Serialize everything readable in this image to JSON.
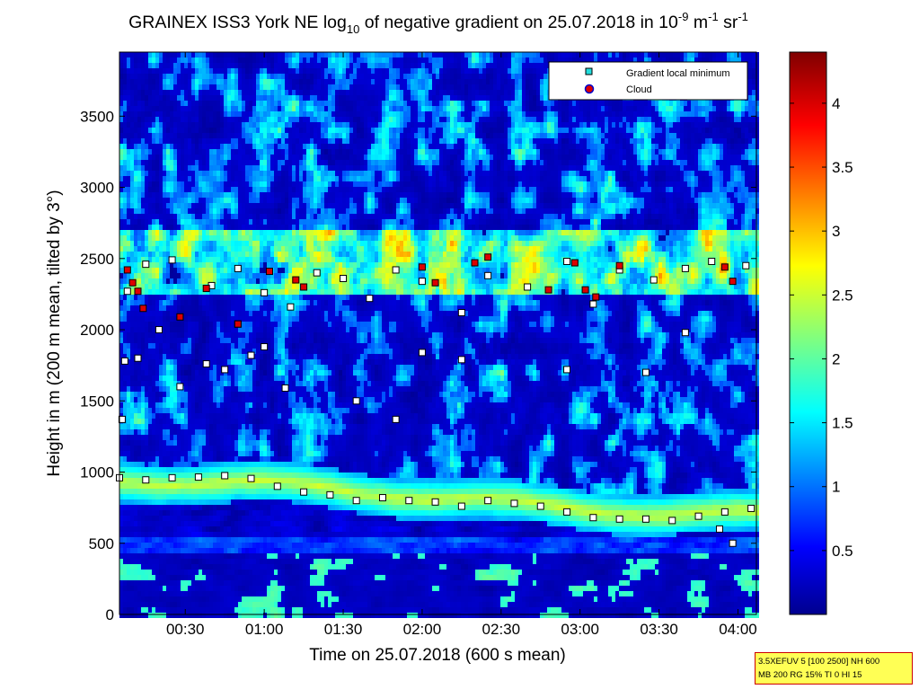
{
  "chart_data": {
    "type": "heatmap",
    "title_parts": {
      "pre": "GRAINEX ISS3 York NE log",
      "sub": "10",
      "mid": " of negative gradient on 25.07.2018 in 10",
      "sup1": "-9",
      "mid2": " m",
      "sup2": "-1",
      "mid3": " sr",
      "sup3": "-1"
    },
    "xlabel": "Time on 25.07.2018 (600 s mean)",
    "ylabel": "Height in m (200 m mean, tilted by 3°)",
    "x_ticks": [
      "00:30",
      "01:00",
      "01:30",
      "02:00",
      "02:30",
      "03:00",
      "03:30",
      "04:00"
    ],
    "x_tick_minutes": [
      30,
      60,
      90,
      120,
      150,
      180,
      210,
      240
    ],
    "xlim_minutes": [
      5,
      247
    ],
    "y_ticks": [
      "0",
      "500",
      "1000",
      "1500",
      "2000",
      "2500",
      "3000",
      "3500"
    ],
    "y_tick_values": [
      0,
      500,
      1000,
      1500,
      2000,
      2500,
      3000,
      3500
    ],
    "ylim": [
      0,
      3950
    ],
    "colorbar": {
      "range": [
        0,
        4.4
      ],
      "ticks": [
        "0.5",
        "1",
        "1.5",
        "2",
        "2.5",
        "3",
        "3.5",
        "4"
      ],
      "tick_values": [
        0.5,
        1,
        1.5,
        2,
        2.5,
        3,
        3.5,
        4
      ]
    },
    "legend": {
      "placement": "top-right",
      "entries": [
        {
          "label": "Gradient local minimum",
          "marker": "cyan-square",
          "color": "#22dddd"
        },
        {
          "label": "Cloud",
          "marker": "red-circle",
          "color": "#dd0000"
        }
      ]
    },
    "series": [
      {
        "name": "Gradient local minimum",
        "points": [
          [
            5,
            960
          ],
          [
            15,
            945
          ],
          [
            25,
            960
          ],
          [
            35,
            965
          ],
          [
            45,
            975
          ],
          [
            55,
            955
          ],
          [
            65,
            900
          ],
          [
            75,
            860
          ],
          [
            85,
            840
          ],
          [
            95,
            800
          ],
          [
            105,
            820
          ],
          [
            115,
            800
          ],
          [
            125,
            790
          ],
          [
            135,
            760
          ],
          [
            145,
            800
          ],
          [
            155,
            780
          ],
          [
            165,
            760
          ],
          [
            175,
            720
          ],
          [
            185,
            680
          ],
          [
            195,
            670
          ],
          [
            205,
            670
          ],
          [
            215,
            660
          ],
          [
            225,
            690
          ],
          [
            235,
            720
          ],
          [
            245,
            745
          ],
          [
            7,
            1780
          ],
          [
            12,
            1800
          ],
          [
            20,
            2000
          ],
          [
            28,
            1600
          ],
          [
            38,
            1760
          ],
          [
            45,
            1720
          ],
          [
            55,
            1820
          ],
          [
            60,
            1880
          ],
          [
            68,
            1590
          ],
          [
            95,
            1500
          ],
          [
            110,
            1370
          ],
          [
            120,
            1840
          ],
          [
            135,
            1790
          ],
          [
            175,
            1720
          ],
          [
            205,
            1700
          ],
          [
            220,
            1980
          ],
          [
            233,
            600
          ],
          [
            238,
            500
          ],
          [
            8,
            2270
          ],
          [
            15,
            2460
          ],
          [
            25,
            2490
          ],
          [
            40,
            2310
          ],
          [
            50,
            2430
          ],
          [
            60,
            2260
          ],
          [
            70,
            2160
          ],
          [
            80,
            2400
          ],
          [
            90,
            2360
          ],
          [
            110,
            2420
          ],
          [
            120,
            2340
          ],
          [
            135,
            2120
          ],
          [
            145,
            2380
          ],
          [
            160,
            2300
          ],
          [
            175,
            2480
          ],
          [
            185,
            2180
          ],
          [
            195,
            2420
          ],
          [
            208,
            2350
          ],
          [
            220,
            2430
          ],
          [
            230,
            2480
          ],
          [
            243,
            2450
          ],
          [
            6,
            1370
          ],
          [
            50,
            2040
          ],
          [
            100,
            2220
          ]
        ]
      },
      {
        "name": "Cloud",
        "points": [
          [
            8,
            2420
          ],
          [
            10,
            2330
          ],
          [
            12,
            2270
          ],
          [
            14,
            2150
          ],
          [
            28,
            2090
          ],
          [
            38,
            2290
          ],
          [
            50,
            2040
          ],
          [
            62,
            2410
          ],
          [
            72,
            2350
          ],
          [
            75,
            2300
          ],
          [
            120,
            2440
          ],
          [
            125,
            2330
          ],
          [
            140,
            2470
          ],
          [
            145,
            2510
          ],
          [
            168,
            2280
          ],
          [
            178,
            2470
          ],
          [
            182,
            2280
          ],
          [
            186,
            2230
          ],
          [
            195,
            2450
          ],
          [
            235,
            2440
          ],
          [
            238,
            2340
          ]
        ]
      }
    ]
  },
  "info_box": {
    "line1": "3.5XEFUV 5 [100 2500] NH 600",
    "line2": "MB 200 RG 15% TI 0 HI 15"
  }
}
